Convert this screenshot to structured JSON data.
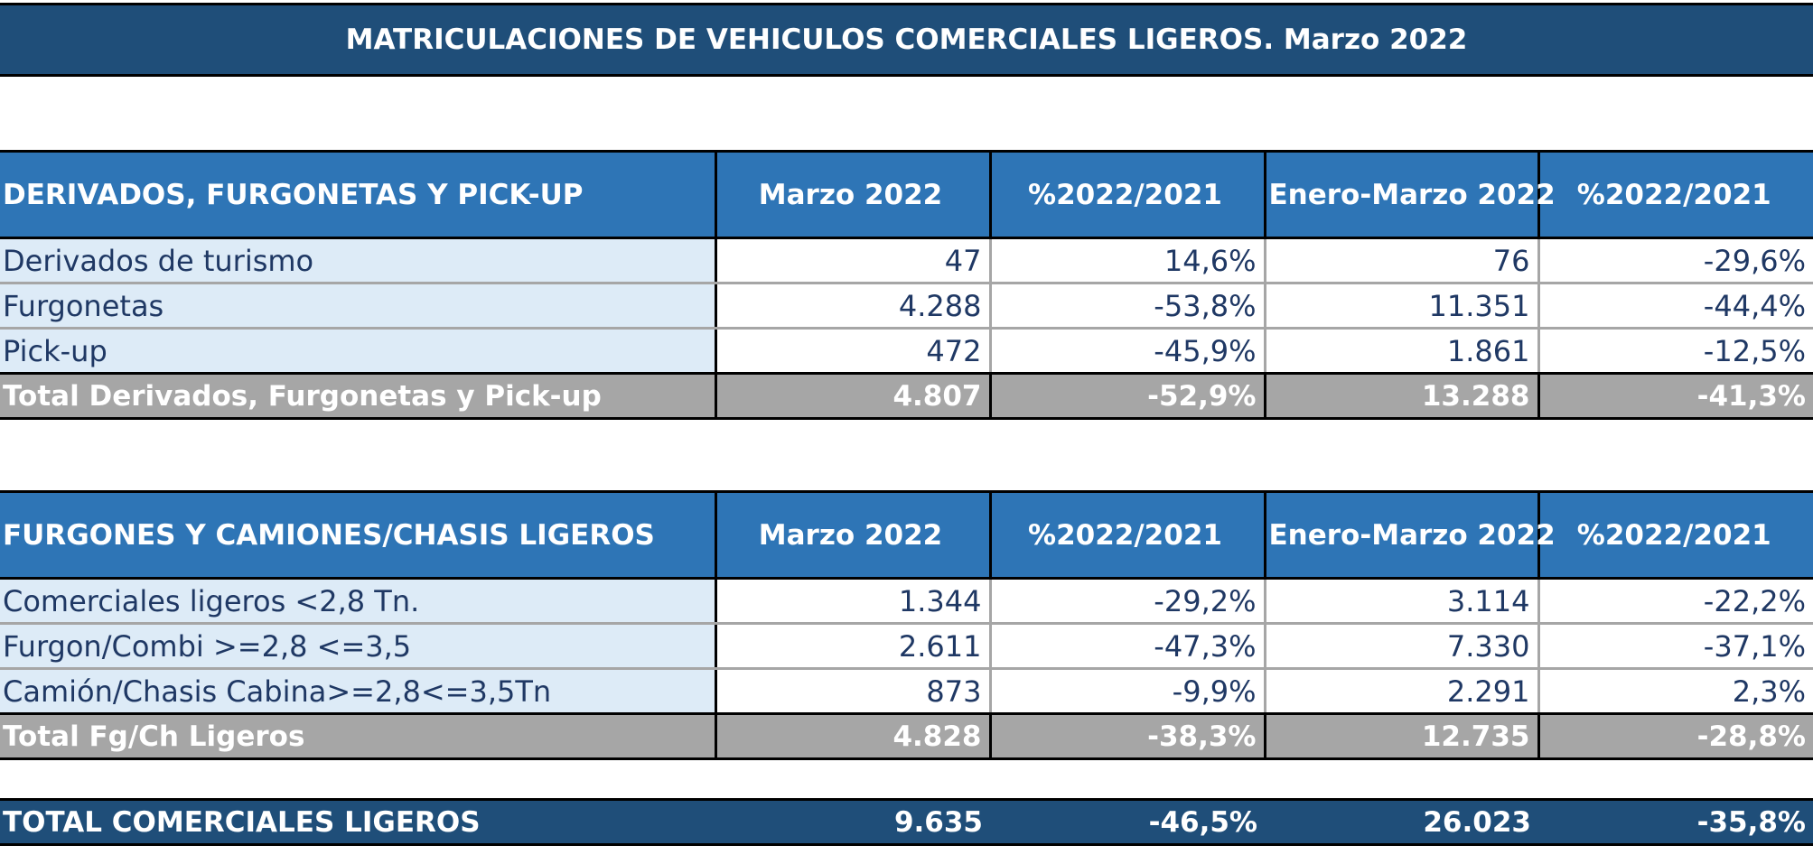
{
  "title": "MATRICULACIONES DE VEHICULOS COMERCIALES LIGEROS. Marzo 2022",
  "sections": [
    {
      "headers": [
        "DERIVADOS, FURGONETAS Y PICK-UP",
        "Marzo 2022",
        "%2022/2021",
        "Enero-Marzo 2022",
        "%2022/2021"
      ],
      "rows": [
        [
          "Derivados de turismo",
          "47",
          "14,6%",
          "76",
          "-29,6%"
        ],
        [
          "Furgonetas",
          "4.288",
          "-53,8%",
          "11.351",
          "-44,4%"
        ],
        [
          "Pick-up",
          "472",
          "-45,9%",
          "1.861",
          "-12,5%"
        ]
      ],
      "total": [
        "Total Derivados, Furgonetas y Pick-up",
        "4.807",
        "-52,9%",
        "13.288",
        "-41,3%"
      ]
    },
    {
      "headers": [
        "FURGONES Y CAMIONES/CHASIS LIGEROS",
        "Marzo 2022",
        "%2022/2021",
        "Enero-Marzo 2022",
        "%2022/2021"
      ],
      "rows": [
        [
          "Comerciales ligeros <2,8 Tn.",
          "1.344",
          "-29,2%",
          "3.114",
          "-22,2%"
        ],
        [
          "Furgon/Combi >=2,8 <=3,5",
          "2.611",
          "-47,3%",
          "7.330",
          "-37,1%"
        ],
        [
          "Camión/Chasis Cabina>=2,8<=3,5Tn",
          "873",
          "-9,9%",
          "2.291",
          "2,3%"
        ]
      ],
      "total": [
        "Total Fg/Ch Ligeros",
        "4.828",
        "-38,3%",
        "12.735",
        "-28,8%"
      ]
    }
  ],
  "grand_total": [
    "TOTAL COMERCIALES LIGEROS",
    "9.635",
    "-46,5%",
    "26.023",
    "-35,8%"
  ]
}
